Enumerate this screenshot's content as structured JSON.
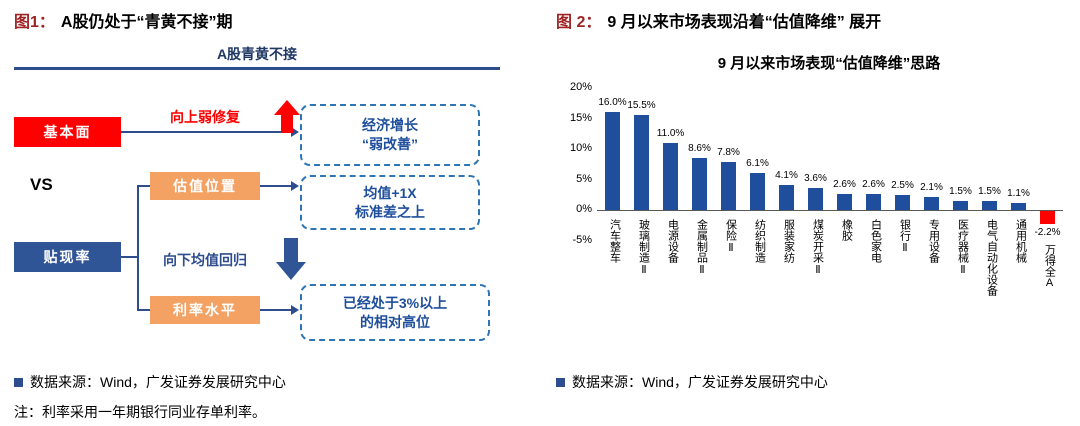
{
  "colors": {
    "title_prefix_red": "#9E2424",
    "diagram_red": "#FE0000",
    "diagram_navy": "#2F5597",
    "diagram_orange": "#F4A263",
    "dashed_border_blue": "#2E75B6",
    "dashed_text_blue": "#1F4E9C",
    "header_blue": "#1F3864",
    "bar_blue": "#1F4E9C",
    "bar_negative_red": "#FF0000"
  },
  "left_panel": {
    "title_prefix": "图1：",
    "title": "A股仍处于“青黄不接”期",
    "diagram": {
      "header": "A股青黄不接",
      "fundamental": "基本面",
      "up_label": "向上弱修复",
      "growth_line1": "经济增长",
      "growth_line2": "“弱改善”",
      "vs": "VS",
      "valuation": "估值位置",
      "valuation_line1": "均值+1X",
      "valuation_line2": "标准差之上",
      "discount": "贴现率",
      "down_label": "向下均值回归",
      "rate": "利率水平",
      "rate_line1": "已经处于3%以上",
      "rate_line2": "的相对高位"
    },
    "source": "数据来源：Wind，广发证券发展研究中心",
    "note": "注：利率采用一年期银行同业存单利率。"
  },
  "right_panel": {
    "title_prefix": "图 2：",
    "title": "9 月以来市场表现沿着“估值降维” 展开",
    "source": "数据来源：Wind，广发证券发展研究中心"
  },
  "chart_data": {
    "type": "bar",
    "title": "9 月以来市场表现“估值降维”思路",
    "categories": [
      "汽车整车",
      "玻璃制造Ⅱ",
      "电源设备",
      "金属制品Ⅱ",
      "保险Ⅱ",
      "纺织制造",
      "服装家纺",
      "煤炭开采Ⅱ",
      "橡胶",
      "白色家电",
      "银行Ⅱ",
      "专用设备",
      "医疗器械Ⅱ",
      "电气自动化设备",
      "通用机械",
      "万得全A"
    ],
    "values": [
      16.0,
      15.5,
      11.0,
      8.6,
      7.8,
      6.1,
      4.1,
      3.6,
      2.6,
      2.6,
      2.5,
      2.1,
      1.5,
      1.5,
      1.1,
      -2.2
    ],
    "labels": [
      "16.0%",
      "15.5%",
      "11.0%",
      "8.6%",
      "7.8%",
      "6.1%",
      "4.1%",
      "3.6%",
      "2.6%",
      "2.6%",
      "2.5%",
      "2.1%",
      "1.5%",
      "1.5%",
      "1.1%",
      "-2.2%"
    ],
    "yticks": [
      "20%",
      "15%",
      "10%",
      "5%",
      "0%",
      "-5%"
    ],
    "ytick_values": [
      20,
      15,
      10,
      5,
      0,
      -5
    ],
    "ylim": [
      -5,
      20
    ],
    "xlabel": "",
    "ylabel": "",
    "grid": false,
    "legend": false,
    "bar_color": "#1F4E9C",
    "negative_color": "#FF0000"
  }
}
